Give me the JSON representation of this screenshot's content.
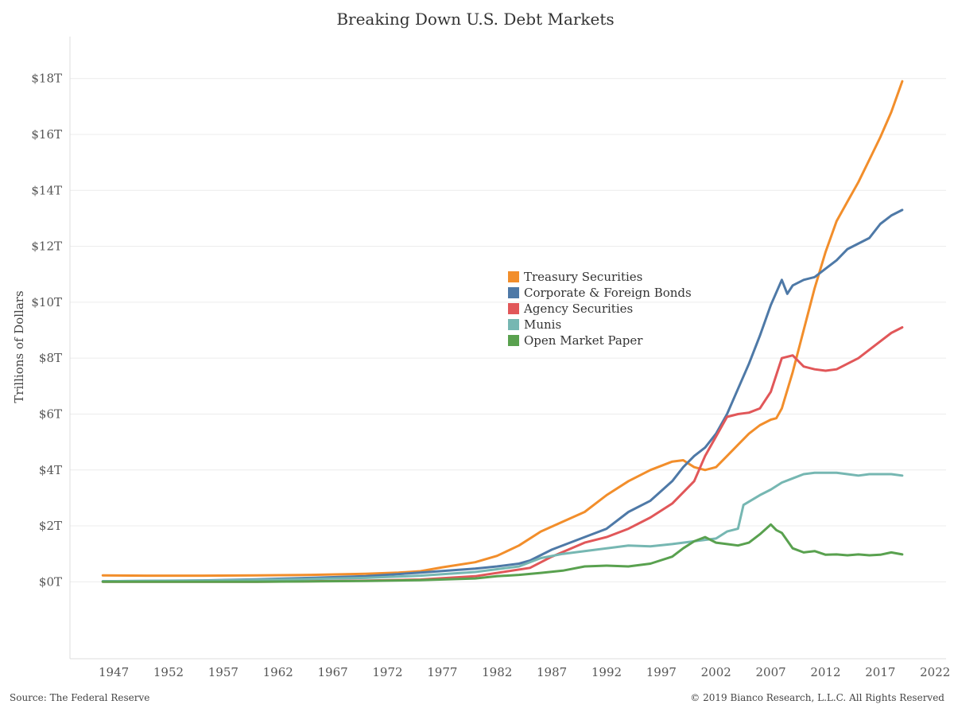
{
  "chart_data": {
    "type": "line",
    "title": "Breaking Down U.S. Debt Markets",
    "xlabel": "",
    "ylabel": "Trillions of Dollars",
    "xlim": [
      1943,
      2023
    ],
    "ylim": [
      -2.75,
      19.5
    ],
    "x_ticks": [
      1947,
      1952,
      1957,
      1962,
      1967,
      1972,
      1977,
      1982,
      1987,
      1992,
      1997,
      2002,
      2007,
      2012,
      2017,
      2022
    ],
    "y_ticks": [
      0,
      2,
      4,
      6,
      8,
      10,
      12,
      14,
      16,
      18
    ],
    "y_tick_labels": [
      "$0T",
      "$2T",
      "$4T",
      "$6T",
      "$8T",
      "$10T",
      "$12T",
      "$14T",
      "$16T",
      "$18T"
    ],
    "grid": "horizontal",
    "legend_position": "center",
    "series": [
      {
        "name": "Treasury Securities",
        "color": "#f28e2b",
        "points": [
          [
            1946,
            0.23
          ],
          [
            1950,
            0.22
          ],
          [
            1955,
            0.22
          ],
          [
            1960,
            0.23
          ],
          [
            1965,
            0.25
          ],
          [
            1970,
            0.29
          ],
          [
            1973,
            0.33
          ],
          [
            1975,
            0.38
          ],
          [
            1977,
            0.52
          ],
          [
            1980,
            0.7
          ],
          [
            1982,
            0.93
          ],
          [
            1984,
            1.3
          ],
          [
            1986,
            1.8
          ],
          [
            1988,
            2.15
          ],
          [
            1990,
            2.5
          ],
          [
            1992,
            3.1
          ],
          [
            1994,
            3.6
          ],
          [
            1996,
            4.0
          ],
          [
            1998,
            4.3
          ],
          [
            1999,
            4.35
          ],
          [
            2000,
            4.1
          ],
          [
            2001,
            4.0
          ],
          [
            2002,
            4.1
          ],
          [
            2003,
            4.5
          ],
          [
            2004,
            4.9
          ],
          [
            2005,
            5.3
          ],
          [
            2006,
            5.6
          ],
          [
            2007,
            5.8
          ],
          [
            2007.5,
            5.85
          ],
          [
            2008,
            6.2
          ],
          [
            2009,
            7.5
          ],
          [
            2010,
            9.0
          ],
          [
            2011,
            10.5
          ],
          [
            2012,
            11.8
          ],
          [
            2013,
            12.9
          ],
          [
            2014,
            13.6
          ],
          [
            2015,
            14.3
          ],
          [
            2016,
            15.1
          ],
          [
            2017,
            15.9
          ],
          [
            2018,
            16.8
          ],
          [
            2019,
            17.9
          ]
        ]
      },
      {
        "name": "Corporate & Foreign Bonds",
        "color": "#4e79a7",
        "points": [
          [
            1946,
            0.02
          ],
          [
            1955,
            0.05
          ],
          [
            1960,
            0.09
          ],
          [
            1965,
            0.14
          ],
          [
            1970,
            0.2
          ],
          [
            1975,
            0.33
          ],
          [
            1980,
            0.47
          ],
          [
            1982,
            0.55
          ],
          [
            1984,
            0.65
          ],
          [
            1985,
            0.76
          ],
          [
            1987,
            1.15
          ],
          [
            1990,
            1.6
          ],
          [
            1992,
            1.9
          ],
          [
            1994,
            2.5
          ],
          [
            1996,
            2.9
          ],
          [
            1998,
            3.6
          ],
          [
            1999,
            4.1
          ],
          [
            2000,
            4.5
          ],
          [
            2001,
            4.8
          ],
          [
            2002,
            5.3
          ],
          [
            2003,
            6.0
          ],
          [
            2004,
            6.9
          ],
          [
            2005,
            7.8
          ],
          [
            2006,
            8.8
          ],
          [
            2007,
            9.9
          ],
          [
            2008,
            10.8
          ],
          [
            2008.5,
            10.3
          ],
          [
            2009,
            10.6
          ],
          [
            2010,
            10.8
          ],
          [
            2011,
            10.9
          ],
          [
            2012,
            11.2
          ],
          [
            2013,
            11.5
          ],
          [
            2014,
            11.9
          ],
          [
            2015,
            12.1
          ],
          [
            2016,
            12.3
          ],
          [
            2017,
            12.8
          ],
          [
            2018,
            13.1
          ],
          [
            2019,
            13.3
          ]
        ]
      },
      {
        "name": "Agency Securities",
        "color": "#e15759",
        "points": [
          [
            1946,
            0.0
          ],
          [
            1960,
            0.0
          ],
          [
            1970,
            0.04
          ],
          [
            1975,
            0.08
          ],
          [
            1980,
            0.2
          ],
          [
            1985,
            0.5
          ],
          [
            1987,
            0.9
          ],
          [
            1990,
            1.4
          ],
          [
            1992,
            1.6
          ],
          [
            1994,
            1.9
          ],
          [
            1996,
            2.3
          ],
          [
            1998,
            2.8
          ],
          [
            2000,
            3.6
          ],
          [
            2001,
            4.5
          ],
          [
            2002,
            5.2
          ],
          [
            2003,
            5.9
          ],
          [
            2004,
            6.0
          ],
          [
            2005,
            6.05
          ],
          [
            2006,
            6.2
          ],
          [
            2007,
            6.8
          ],
          [
            2008,
            8.0
          ],
          [
            2009,
            8.1
          ],
          [
            2010,
            7.7
          ],
          [
            2011,
            7.6
          ],
          [
            2012,
            7.55
          ],
          [
            2013,
            7.6
          ],
          [
            2014,
            7.8
          ],
          [
            2015,
            8.0
          ],
          [
            2016,
            8.3
          ],
          [
            2017,
            8.6
          ],
          [
            2018,
            8.9
          ],
          [
            2019,
            9.1
          ]
        ]
      },
      {
        "name": "Munis",
        "color": "#76b7b2",
        "points": [
          [
            1946,
            0.02
          ],
          [
            1955,
            0.04
          ],
          [
            1960,
            0.07
          ],
          [
            1965,
            0.1
          ],
          [
            1970,
            0.14
          ],
          [
            1975,
            0.22
          ],
          [
            1980,
            0.35
          ],
          [
            1984,
            0.55
          ],
          [
            1986,
            0.85
          ],
          [
            1988,
            1.0
          ],
          [
            1990,
            1.1
          ],
          [
            1992,
            1.2
          ],
          [
            1994,
            1.3
          ],
          [
            1996,
            1.27
          ],
          [
            1998,
            1.35
          ],
          [
            2000,
            1.45
          ],
          [
            2002,
            1.55
          ],
          [
            2003,
            1.8
          ],
          [
            2004,
            1.9
          ],
          [
            2004.5,
            2.75
          ],
          [
            2006,
            3.1
          ],
          [
            2007,
            3.3
          ],
          [
            2008,
            3.55
          ],
          [
            2009,
            3.7
          ],
          [
            2010,
            3.85
          ],
          [
            2011,
            3.9
          ],
          [
            2012,
            3.9
          ],
          [
            2013,
            3.9
          ],
          [
            2014,
            3.85
          ],
          [
            2015,
            3.8
          ],
          [
            2016,
            3.85
          ],
          [
            2017,
            3.85
          ],
          [
            2018,
            3.85
          ],
          [
            2019,
            3.8
          ]
        ]
      },
      {
        "name": "Open Market Paper",
        "color": "#59a14f",
        "points": [
          [
            1946,
            0.0
          ],
          [
            1960,
            0.0
          ],
          [
            1970,
            0.03
          ],
          [
            1975,
            0.06
          ],
          [
            1980,
            0.12
          ],
          [
            1982,
            0.2
          ],
          [
            1984,
            0.25
          ],
          [
            1986,
            0.32
          ],
          [
            1988,
            0.4
          ],
          [
            1990,
            0.55
          ],
          [
            1992,
            0.58
          ],
          [
            1994,
            0.55
          ],
          [
            1996,
            0.65
          ],
          [
            1998,
            0.9
          ],
          [
            1999,
            1.2
          ],
          [
            2000,
            1.45
          ],
          [
            2001,
            1.6
          ],
          [
            2002,
            1.4
          ],
          [
            2003,
            1.35
          ],
          [
            2004,
            1.3
          ],
          [
            2005,
            1.4
          ],
          [
            2006,
            1.7
          ],
          [
            2007,
            2.05
          ],
          [
            2007.5,
            1.85
          ],
          [
            2008,
            1.75
          ],
          [
            2009,
            1.2
          ],
          [
            2010,
            1.05
          ],
          [
            2011,
            1.1
          ],
          [
            2012,
            0.97
          ],
          [
            2013,
            0.98
          ],
          [
            2014,
            0.95
          ],
          [
            2015,
            0.98
          ],
          [
            2016,
            0.95
          ],
          [
            2017,
            0.97
          ],
          [
            2018,
            1.05
          ],
          [
            2019,
            0.98
          ]
        ]
      }
    ]
  },
  "footer": {
    "source": "Source: The Federal Reserve",
    "copyright": "© 2019 Bianco Research, L.L.C. All Rights Reserved"
  }
}
